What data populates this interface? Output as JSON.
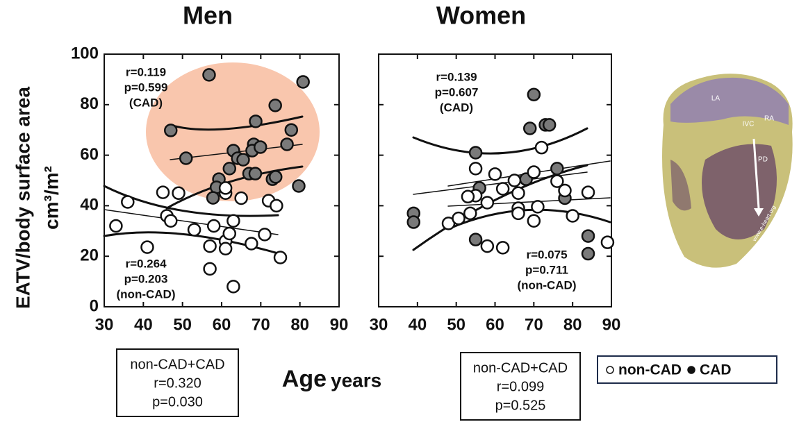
{
  "chart_data": [
    {
      "type": "scatter",
      "title": "Men",
      "ylabel": "EATV/body surface area",
      "ylabel_unit": "cm³/m²",
      "xlabel": "Age",
      "xlabel_unit": "years",
      "xlim": [
        30,
        90
      ],
      "xticks": [
        30,
        40,
        50,
        60,
        70,
        80,
        90
      ],
      "ylim": [
        0,
        100
      ],
      "yticks": [
        0,
        20,
        40,
        60,
        80,
        100
      ],
      "show_ytick_labels": true,
      "highlight_color": "#f9c6ad",
      "series": [
        {
          "name": "non-CAD",
          "color": "#ffffff",
          "x": [
            33,
            36,
            41,
            45,
            49,
            46,
            47,
            53,
            57,
            57,
            58,
            61,
            61,
            61,
            62,
            63,
            65,
            63,
            67.6,
            71,
            72,
            74,
            75,
            61
          ],
          "y": [
            32,
            41.5,
            23.6,
            45.3,
            45,
            36,
            34,
            30.5,
            24,
            15,
            32,
            45,
            26,
            23,
            29,
            34,
            43,
            8,
            25,
            28.6,
            42,
            40,
            19.5,
            47
          ]
        },
        {
          "name": "CAD",
          "color": "#7a7a7a",
          "x": [
            56.8,
            80.8,
            73.7,
            47,
            68.7,
            77.8,
            50.9,
            68.2,
            76.7,
            63,
            67.8,
            69.9,
            64.1,
            62,
            59.3,
            58.7,
            57.8,
            67,
            68.6,
            73,
            73.8,
            79.7,
            65.5
          ],
          "y": [
            91.8,
            89,
            79.7,
            69.8,
            73.4,
            70,
            58.8,
            64.3,
            64.3,
            61.8,
            61.8,
            63.2,
            58.8,
            54.7,
            50.5,
            47.3,
            43.1,
            52.7,
            52.7,
            50.5,
            51.4,
            47.8,
            58.2
          ]
        }
      ],
      "annotations": [
        [
          "r=0.119",
          "p=0.599",
          "(CAD)"
        ],
        [
          "r=0.264",
          "p=0.203",
          "(non-CAD)"
        ]
      ],
      "summary": [
        "non-CAD+CAD",
        "r=0.320",
        "p=0.030"
      ]
    },
    {
      "type": "scatter",
      "title": "Women",
      "xlim": [
        30,
        90
      ],
      "xticks": [
        30,
        40,
        50,
        60,
        70,
        80,
        90
      ],
      "ylim": [
        0,
        100
      ],
      "yticks": [
        0,
        20,
        40,
        60,
        80,
        100
      ],
      "show_ytick_labels": false,
      "series": [
        {
          "name": "non-CAD",
          "color": "#ffffff",
          "x": [
            72,
            55,
            60,
            70,
            55,
            53,
            58,
            62,
            65,
            66,
            66,
            66,
            71,
            70,
            48,
            50.6,
            53.6,
            58,
            62,
            76,
            78,
            80,
            84,
            89
          ],
          "y": [
            63,
            54.7,
            52.5,
            53.3,
            44,
            43.6,
            41.2,
            46.7,
            50,
            45,
            39,
            37,
            39.6,
            34,
            33,
            35,
            37,
            24,
            23.4,
            49.7,
            46,
            36,
            45.3,
            25.5
          ]
        },
        {
          "name": "CAD",
          "color": "#7a7a7a",
          "x": [
            70,
            69,
            73,
            74,
            55,
            56,
            68,
            76,
            78,
            39,
            39,
            55,
            84,
            84
          ],
          "y": [
            84,
            70.6,
            72,
            72,
            61,
            47,
            50.5,
            54.7,
            43,
            37,
            33.5,
            26.6,
            28,
            21
          ]
        }
      ],
      "annotations": [
        [
          "r=0.139",
          "p=0.607",
          "(CAD)"
        ],
        [
          "r=0.075",
          "p=0.711",
          "(non-CAD)"
        ]
      ],
      "summary": [
        "non-CAD+CAD",
        "r=0.099",
        "p=0.525"
      ]
    }
  ],
  "heart_image": {
    "labels": [
      "LA",
      "RA",
      "IVC",
      "PD",
      "www.e-heart.org"
    ]
  }
}
